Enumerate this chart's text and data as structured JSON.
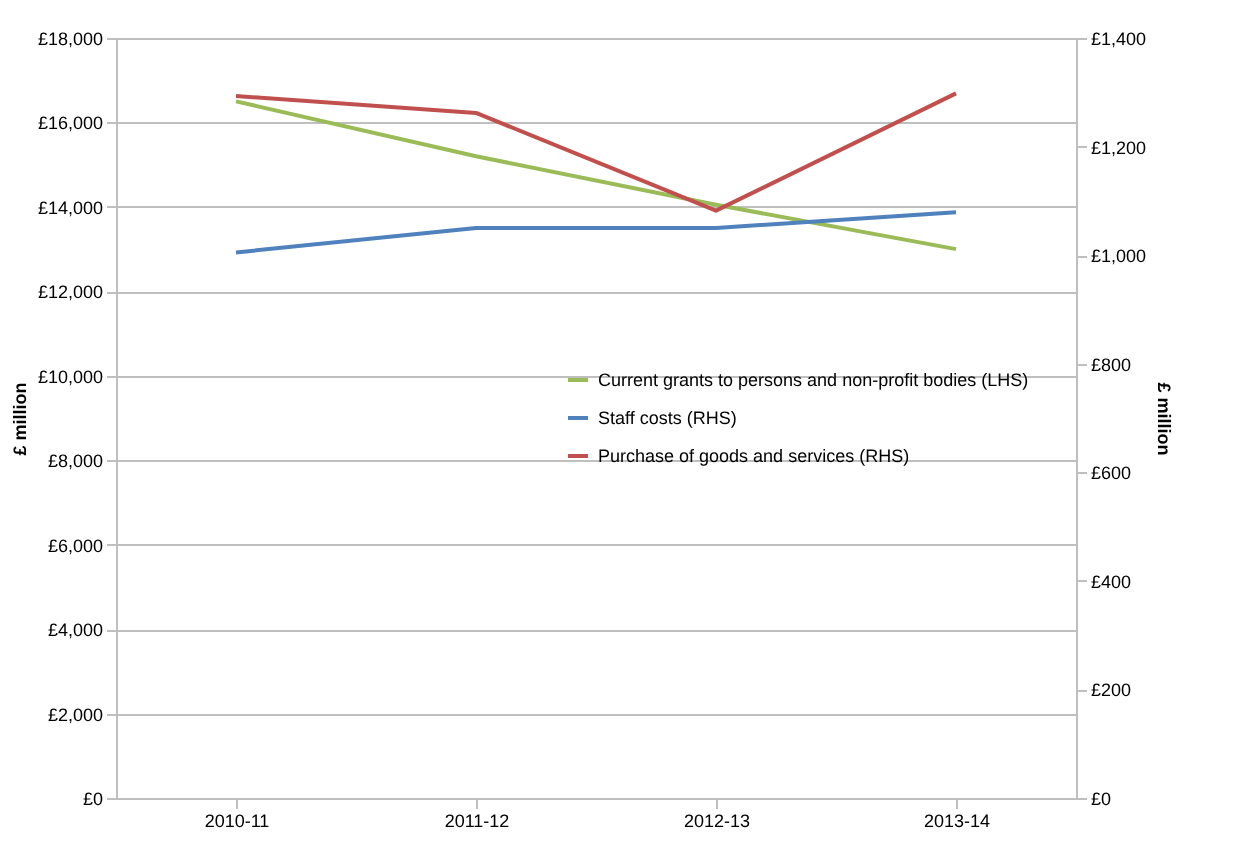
{
  "chart_data": {
    "type": "line",
    "categories": [
      "2010-11",
      "2011-12",
      "2012-13",
      "2013-14"
    ],
    "ylabel": "£ million",
    "y2label": "£ million",
    "ylim": [
      0,
      18000
    ],
    "yticks": [
      {
        "value": 0,
        "label": "£0"
      },
      {
        "value": 2000,
        "label": "£2,000"
      },
      {
        "value": 4000,
        "label": "£4,000"
      },
      {
        "value": 6000,
        "label": "£6,000"
      },
      {
        "value": 8000,
        "label": "£8,000"
      },
      {
        "value": 10000,
        "label": "£10,000"
      },
      {
        "value": 12000,
        "label": "£12,000"
      },
      {
        "value": 14000,
        "label": "£14,000"
      },
      {
        "value": 16000,
        "label": "£16,000"
      },
      {
        "value": 18000,
        "label": "£18,000"
      }
    ],
    "y2lim": [
      0,
      1400
    ],
    "y2ticks": [
      {
        "value": 0,
        "label": "£0"
      },
      {
        "value": 200,
        "label": "£200"
      },
      {
        "value": 400,
        "label": "£400"
      },
      {
        "value": 600,
        "label": "£600"
      },
      {
        "value": 800,
        "label": "£800"
      },
      {
        "value": 1000,
        "label": "£1,000"
      },
      {
        "value": 1200,
        "label": "£1,200"
      },
      {
        "value": 1400,
        "label": "£1,400"
      }
    ],
    "series": [
      {
        "name": "Current grants to persons and non-profit bodies (LHS)",
        "color": "#9bbb59",
        "values": [
          16500,
          15200,
          14050,
          13000
        ]
      },
      {
        "name": "Staff costs (RHS)",
        "color": "#4f81bd",
        "axis": "y2",
        "values": [
          1005,
          1050,
          1050,
          1079
        ]
      },
      {
        "name": "Purchase of goods and services (RHS)",
        "color": "#c0504d",
        "axis": "y2",
        "values": [
          1293,
          1262,
          1082,
          1298
        ]
      }
    ],
    "grid": "y",
    "legend": "right",
    "marker": "none",
    "line_style": "solid"
  }
}
